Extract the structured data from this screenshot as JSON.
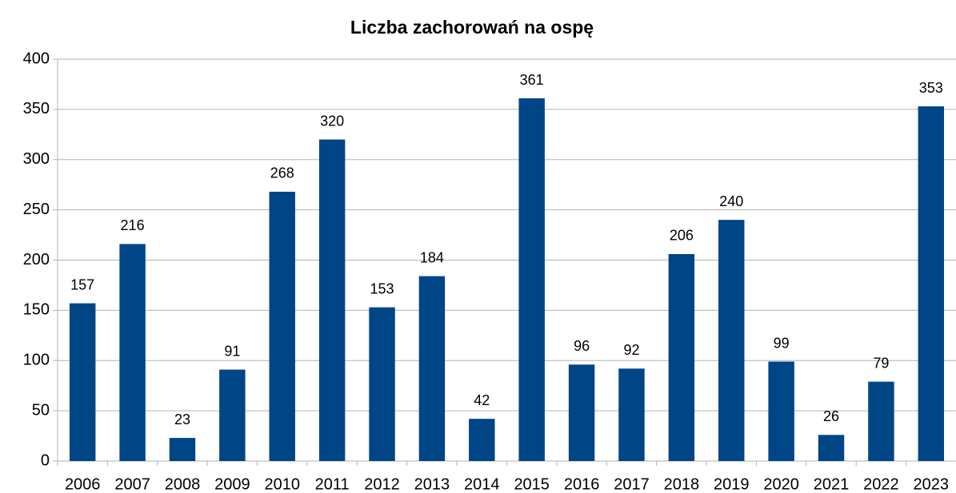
{
  "chart_data": {
    "type": "bar",
    "title": "Liczba zachorowań na ospę",
    "categories": [
      "2006",
      "2007",
      "2008",
      "2009",
      "2010",
      "2011",
      "2012",
      "2013",
      "2014",
      "2015",
      "2016",
      "2017",
      "2018",
      "2019",
      "2020",
      "2021",
      "2022",
      "2023"
    ],
    "values": [
      157,
      216,
      23,
      91,
      268,
      320,
      153,
      184,
      42,
      361,
      96,
      92,
      206,
      240,
      99,
      26,
      79,
      353
    ],
    "color": "#004586",
    "ylim": [
      0,
      400
    ],
    "yticks": [
      0,
      50,
      100,
      150,
      200,
      250,
      300,
      350,
      400
    ],
    "grid": true
  }
}
